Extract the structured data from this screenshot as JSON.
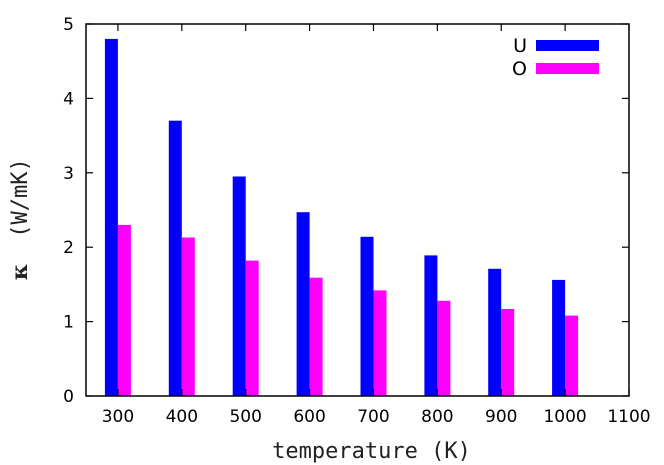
{
  "chart_data": {
    "type": "bar",
    "categories": [
      "300",
      "400",
      "500",
      "600",
      "700",
      "800",
      "900",
      "1000"
    ],
    "x_ticks": [
      "300",
      "400",
      "500",
      "600",
      "700",
      "800",
      "900",
      "1000",
      "1100"
    ],
    "y_ticks": [
      "0",
      "1",
      "2",
      "3",
      "4",
      "5"
    ],
    "series": [
      {
        "name": "U",
        "color": "#0000ff",
        "values": [
          4.8,
          3.7,
          2.95,
          2.47,
          2.14,
          1.89,
          1.71,
          1.56
        ]
      },
      {
        "name": "O",
        "color": "#ff00ff",
        "values": [
          2.3,
          2.13,
          1.82,
          1.59,
          1.42,
          1.28,
          1.17,
          1.08
        ]
      }
    ],
    "xlabel": "temperature (K)",
    "ylabel_symbol": "κ",
    "ylabel_unit": "(W/mK)",
    "xlim": [
      250,
      1100
    ],
    "ylim": [
      0,
      5
    ],
    "grid": false,
    "legend_position": "top-right"
  }
}
